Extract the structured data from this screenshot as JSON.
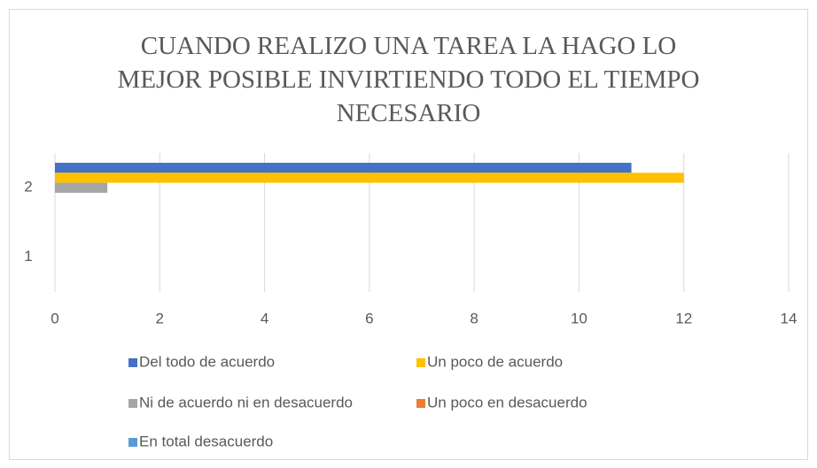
{
  "chart_data": {
    "type": "bar",
    "orientation": "horizontal",
    "title": "CUANDO REALIZO UNA TAREA LA HAGO LO MEJOR POSIBLE INVIRTIENDO TODO EL TIEMPO NECESARIO",
    "categories": [
      "1",
      "2"
    ],
    "series": [
      {
        "name": "Del todo de acuerdo",
        "color": "#4472c4",
        "values": [
          0,
          11
        ]
      },
      {
        "name": "Un poco de acuerdo",
        "color": "#ffc000",
        "values": [
          0,
          12
        ]
      },
      {
        "name": "Ni de acuerdo ni en desacuerdo",
        "color": "#a5a5a5",
        "values": [
          0,
          1
        ]
      },
      {
        "name": "Un poco en desacuerdo",
        "color": "#ed7d31",
        "values": [
          0,
          0
        ]
      },
      {
        "name": "En total desacuerdo",
        "color": "#5b9bd5",
        "values": [
          0,
          0
        ]
      }
    ],
    "xlim": [
      0,
      14
    ],
    "xticks": [
      0,
      2,
      4,
      6,
      8,
      10,
      12,
      14
    ],
    "grid": true,
    "legend": "bottom"
  }
}
